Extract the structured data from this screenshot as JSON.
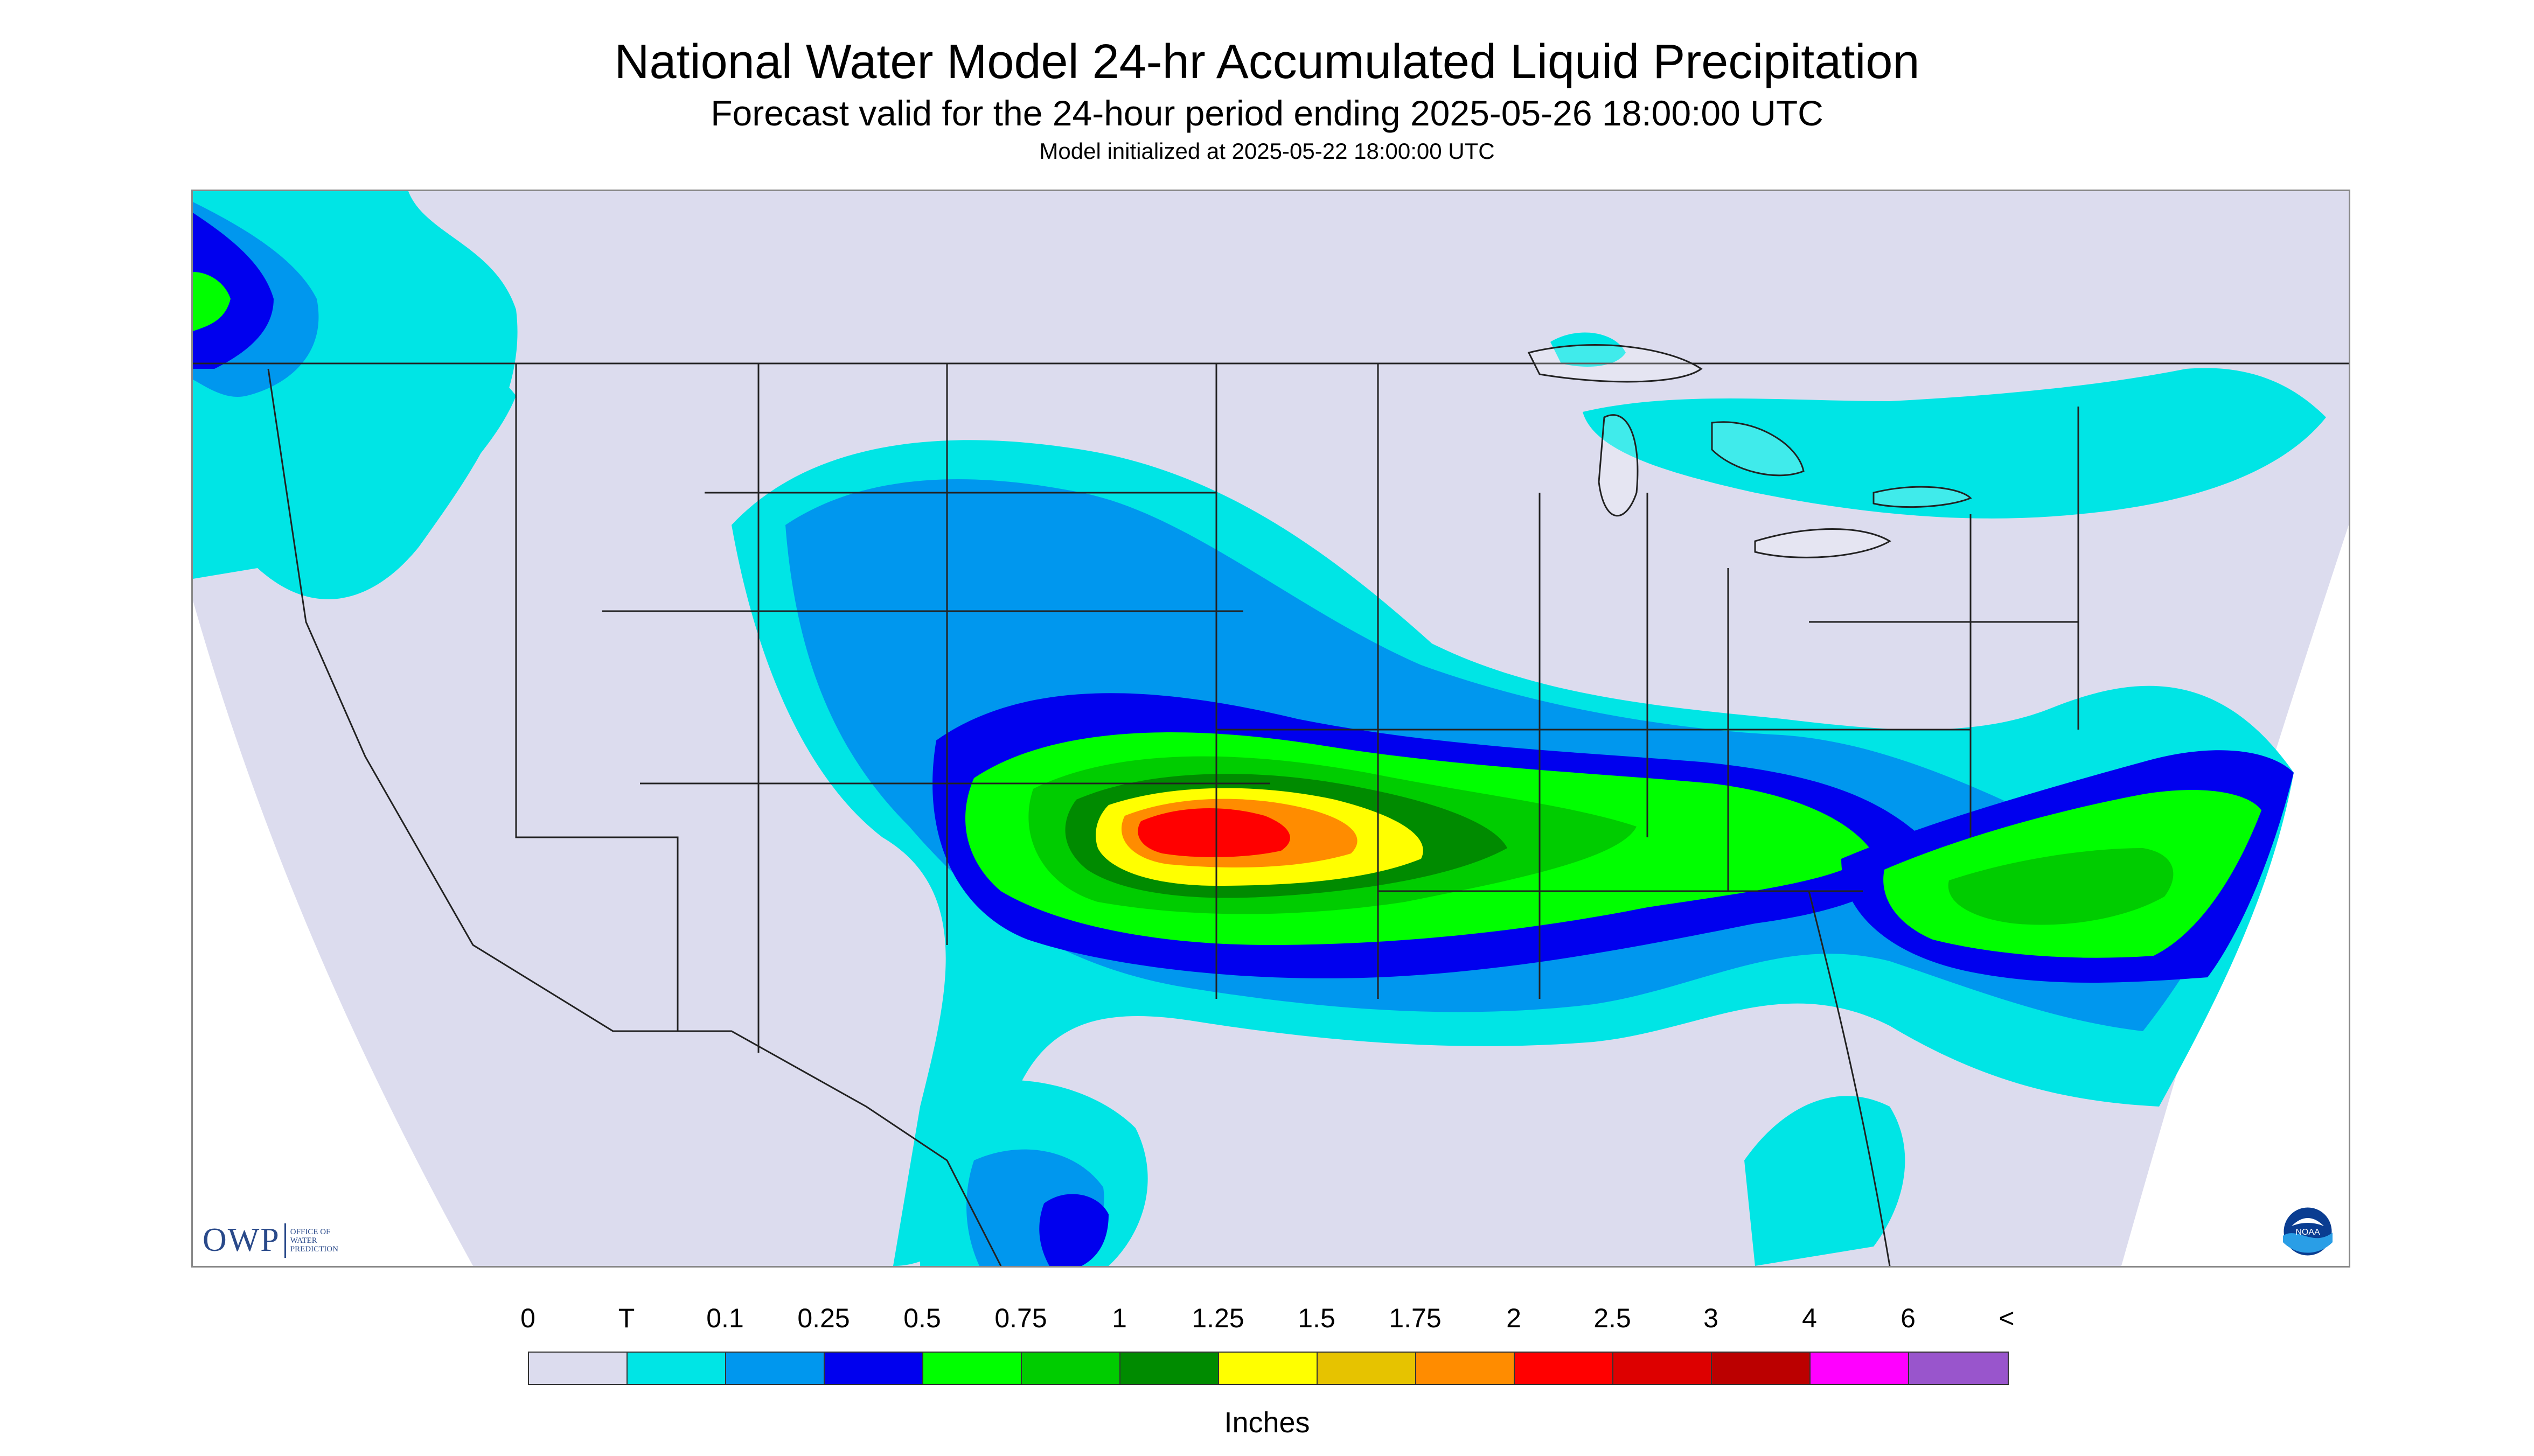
{
  "header": {
    "title": "National Water Model 24-hr Accumulated Liquid Precipitation",
    "subtitle": "Forecast valid for the 24-hour period ending 2025-05-26 18:00:00 UTC",
    "init_line": "Model initialized at 2025-05-22 18:00:00 UTC"
  },
  "map": {
    "domain_color": "#dcdcee",
    "logos": {
      "owp_text": "OWP",
      "owp_subtext": "OFFICE OF\nWATER\nPREDICTION",
      "owp_icon": "owp-logo",
      "noaa_icon": "noaa-logo"
    }
  },
  "legend": {
    "labels": [
      "0",
      "T",
      "0.1",
      "0.25",
      "0.5",
      "0.75",
      "1",
      "1.25",
      "1.5",
      "1.75",
      "2",
      "2.5",
      "3",
      "4",
      "6",
      "<"
    ],
    "colors": [
      "#dcdcee",
      "#00e5e5",
      "#0097ee",
      "#0000ee",
      "#00ff00",
      "#00cc00",
      "#008b00",
      "#ffff00",
      "#e6c300",
      "#ff8c00",
      "#ff0000",
      "#dd0000",
      "#bb0000",
      "#ff00ff",
      "#9955cc"
    ],
    "units": "Inches"
  }
}
